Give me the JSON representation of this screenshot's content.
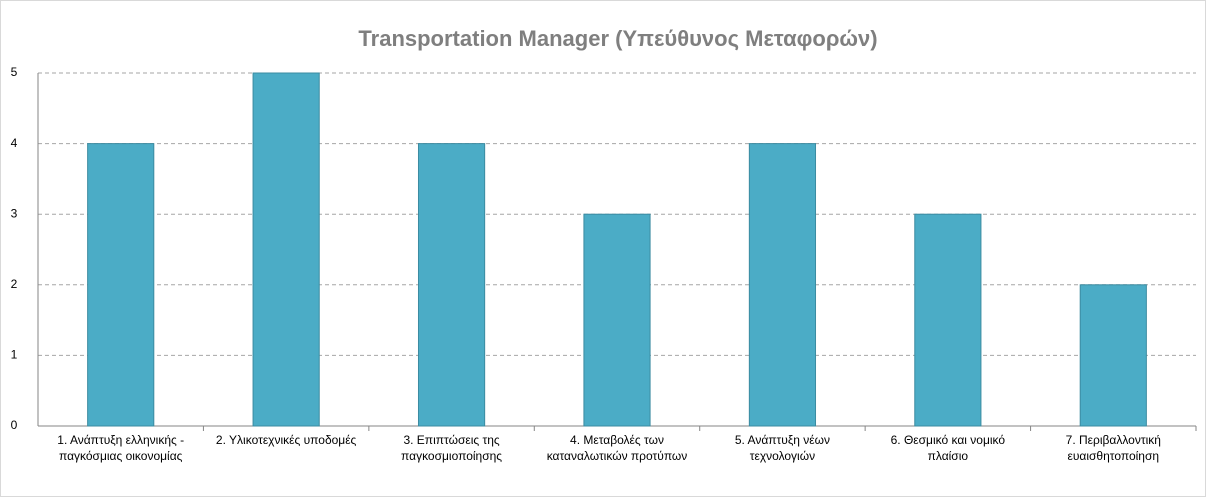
{
  "chart_data": {
    "type": "bar",
    "title": "Transportation Manager (Υπεύθυνος Μεταφορών)",
    "categories": [
      "1. Ανάπτυξη ελληνικής - παγκόσμιας οικονομίας",
      "2. Υλικοτεχνικές υποδομές",
      "3. Επιπτώσεις της παγκοσμιοποίησης",
      "4. Μεταβολές των καταναλωτικών προτύπων",
      "5. Ανάπτυξη νέων τεχνολογιών",
      "6. Θεσμικό και νομικό πλαίσιο",
      "7. Περιβαλλοντική ευαισθητοποίηση"
    ],
    "values": [
      4,
      5,
      4,
      3,
      4,
      3,
      2
    ],
    "color": "#4bacc6",
    "ylim": [
      0,
      5
    ],
    "yticks": [
      0,
      1,
      2,
      3,
      4,
      5
    ],
    "grid": true
  }
}
